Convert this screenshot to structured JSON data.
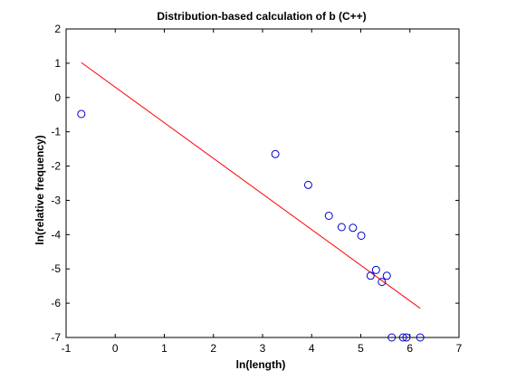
{
  "chart_data": {
    "type": "scatter",
    "title": "Distribution-based calculation of b (C++)",
    "xlabel": "ln(length)",
    "ylabel": "ln(relative frequency)",
    "xlim": [
      -1,
      7
    ],
    "ylim": [
      -7,
      2
    ],
    "xticks": [
      -1,
      0,
      1,
      2,
      3,
      4,
      5,
      6,
      7
    ],
    "yticks": [
      -7,
      -6,
      -5,
      -4,
      -3,
      -2,
      -1,
      0,
      1,
      2
    ],
    "grid": false,
    "legend": "none",
    "colors": {
      "points": "#0000cc",
      "fit_line": "#ff0000",
      "axes": "#000000"
    },
    "series": [
      {
        "type": "scatter",
        "marker": "open-circle",
        "points": [
          [
            -0.69,
            -0.48
          ],
          [
            3.26,
            -1.65
          ],
          [
            3.93,
            -2.55
          ],
          [
            4.35,
            -3.45
          ],
          [
            4.61,
            -3.78
          ],
          [
            4.84,
            -3.8
          ],
          [
            5.01,
            -4.03
          ],
          [
            5.2,
            -5.2
          ],
          [
            5.31,
            -5.03
          ],
          [
            5.43,
            -5.38
          ],
          [
            5.53,
            -5.2
          ],
          [
            5.63,
            -7.0
          ],
          [
            5.86,
            -7.0
          ],
          [
            5.93,
            -7.0
          ],
          [
            6.21,
            -7.0
          ]
        ]
      },
      {
        "type": "line",
        "points": [
          [
            -0.69,
            1.02
          ],
          [
            6.21,
            -6.15
          ]
        ]
      }
    ]
  }
}
